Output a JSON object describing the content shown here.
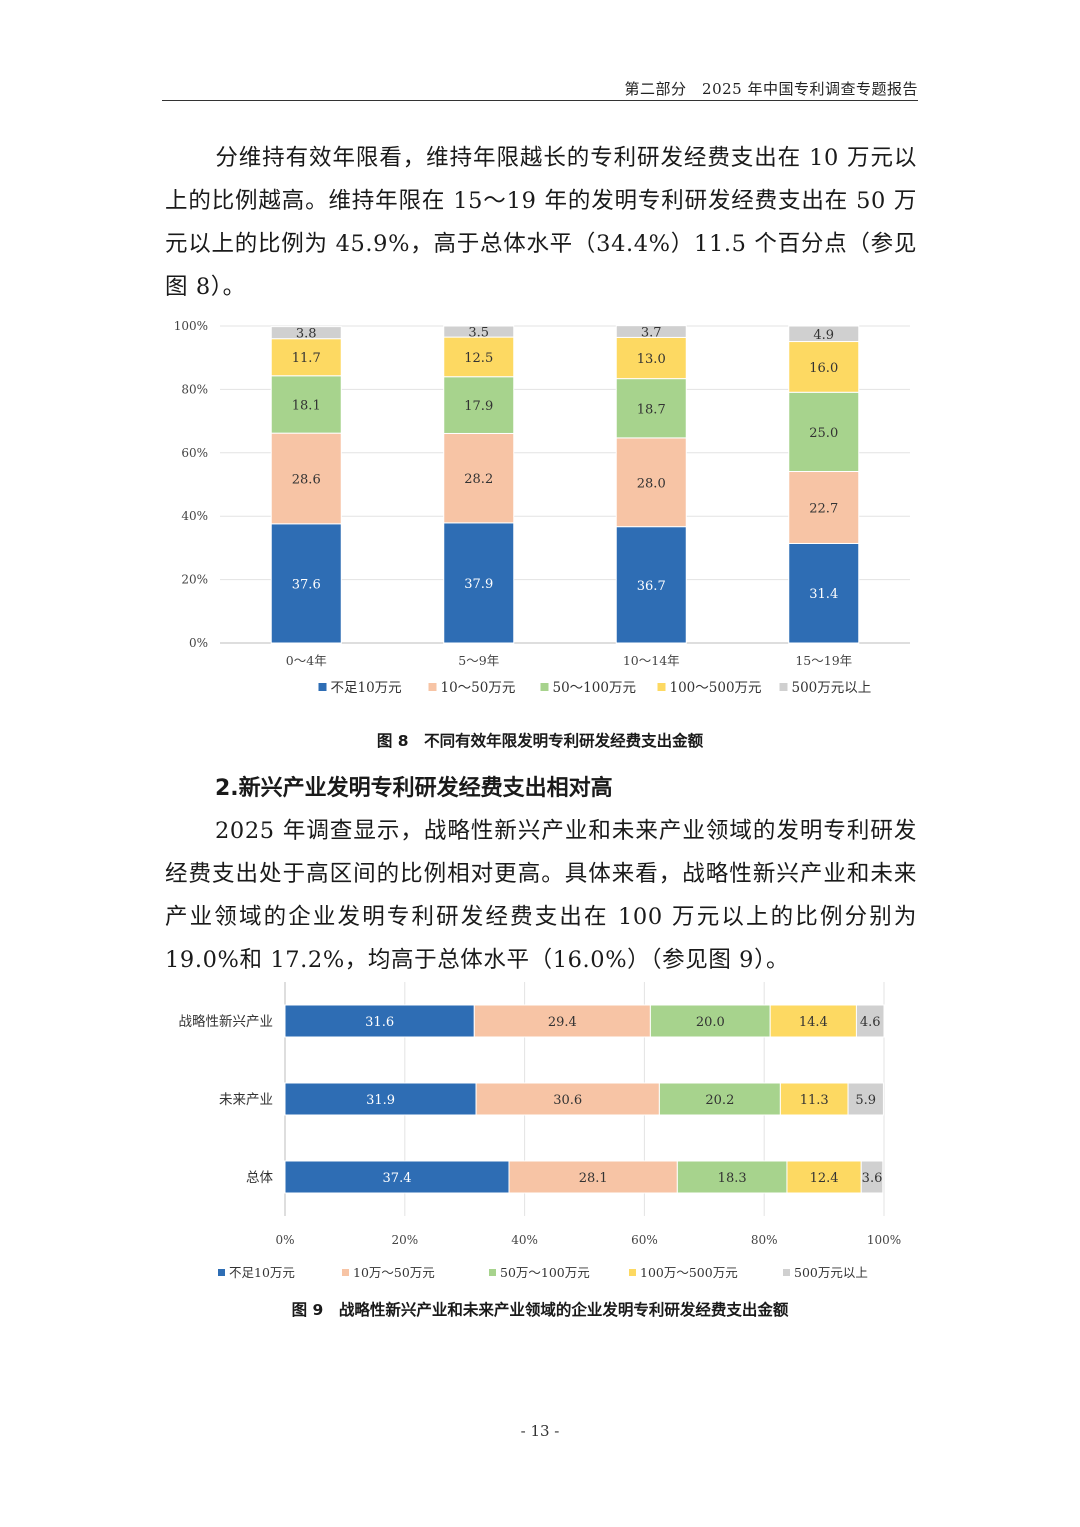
{
  "header": {
    "text": "第二部分　2025 年中国专利调查专题报告"
  },
  "para1": {
    "text": "分维持有效年限看，维持年限越长的专利研发经费支出在 10 万元以上的比例越高。维持年限在 15～19 年的发明专利研发经费支出在 50 万元以上的比例为 45.9%，高于总体水平（34.4%）11.5 个百分点（参见图 8）。"
  },
  "fig8": {
    "caption": "图 8　不同有效年限发明专利研发经费支出金额"
  },
  "section2": {
    "title": "2.新兴产业发明专利研发经费支出相对高"
  },
  "para2": {
    "text": "2025 年调查显示，战略性新兴产业和未来产业领域的发明专利研发经费支出处于高区间的比例相对更高。具体来看，战略性新兴产业和未来产业领域的企业发明专利研发经费支出在 100 万元以上的比例分别为 19.0%和 17.2%，均高于总体水平（16.0%）（参见图 9）。"
  },
  "fig9": {
    "caption": "图 9　战略性新兴产业和未来产业领域的企业发明专利研发经费支出金额"
  },
  "page_number": "- 13 -",
  "chart_data": [
    {
      "type": "bar",
      "stacked": true,
      "orientation": "vertical",
      "categories": [
        "0～4年",
        "5～9年",
        "10～14年",
        "15～19年"
      ],
      "series": [
        {
          "name": "不足10万元",
          "values": [
            37.6,
            37.9,
            36.7,
            31.4
          ],
          "color": "#2E6DB4",
          "label_color": "#ffffff"
        },
        {
          "name": "10～50万元",
          "values": [
            28.6,
            28.2,
            28.0,
            22.7
          ],
          "color": "#F7C4A5",
          "label_color": "#333333"
        },
        {
          "name": "50～100万元",
          "values": [
            18.1,
            17.9,
            18.7,
            25.0
          ],
          "color": "#A7D38D",
          "label_color": "#333333"
        },
        {
          "name": "100～500万元",
          "values": [
            11.7,
            12.5,
            13.0,
            16.0
          ],
          "color": "#FDD962",
          "label_color": "#333333"
        },
        {
          "name": "500万元以上",
          "values": [
            3.8,
            3.5,
            3.7,
            4.9
          ],
          "color": "#D0D0D0",
          "label_color": "#333333"
        }
      ],
      "y_ticks": [
        "0%",
        "20%",
        "40%",
        "60%",
        "80%",
        "100%"
      ],
      "ylim": [
        0,
        100
      ],
      "grid": true,
      "legend": "bottom"
    },
    {
      "type": "bar",
      "stacked": true,
      "orientation": "horizontal",
      "categories": [
        "战略性新兴产业",
        "未来产业",
        "总体"
      ],
      "series": [
        {
          "name": "不足10万元",
          "values": [
            31.6,
            31.9,
            37.4
          ],
          "color": "#2E6DB4",
          "label_color": "#ffffff"
        },
        {
          "name": "10万～50万元",
          "values": [
            29.4,
            30.6,
            28.1
          ],
          "color": "#F7C4A5",
          "label_color": "#333333"
        },
        {
          "name": "50万～100万元",
          "values": [
            20.0,
            20.2,
            18.3
          ],
          "color": "#A7D38D",
          "label_color": "#333333"
        },
        {
          "name": "100万～500万元",
          "values": [
            14.4,
            11.3,
            12.4
          ],
          "color": "#FDD962",
          "label_color": "#333333"
        },
        {
          "name": "500万元以上",
          "values": [
            4.6,
            5.9,
            3.6
          ],
          "color": "#D0D0D0",
          "label_color": "#333333"
        }
      ],
      "x_ticks": [
        "0%",
        "20%",
        "40%",
        "60%",
        "80%",
        "100%"
      ],
      "xlim": [
        0,
        100
      ],
      "grid": true,
      "legend": "bottom"
    }
  ]
}
